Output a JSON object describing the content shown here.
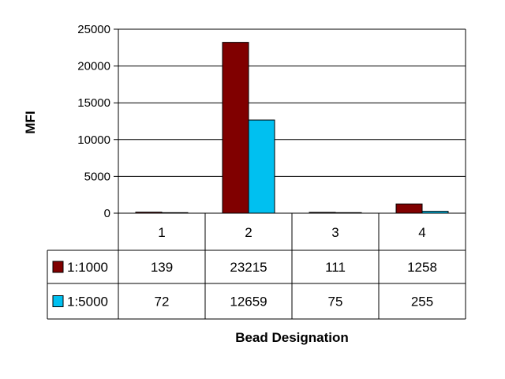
{
  "chart_data": {
    "type": "bar",
    "title": "",
    "xlabel": "Bead Designation",
    "ylabel": "MFI",
    "categories": [
      "1",
      "2",
      "3",
      "4"
    ],
    "ylim": [
      0,
      25000
    ],
    "yticks": [
      0,
      5000,
      10000,
      15000,
      20000,
      25000
    ],
    "grid": true,
    "legend": "data-table",
    "series": [
      {
        "name": "1:1000",
        "color": "#800000",
        "values": [
          139,
          23215,
          111,
          1258
        ]
      },
      {
        "name": "1:5000",
        "color": "#00c0f0",
        "values": [
          72,
          12659,
          75,
          255
        ]
      }
    ]
  }
}
